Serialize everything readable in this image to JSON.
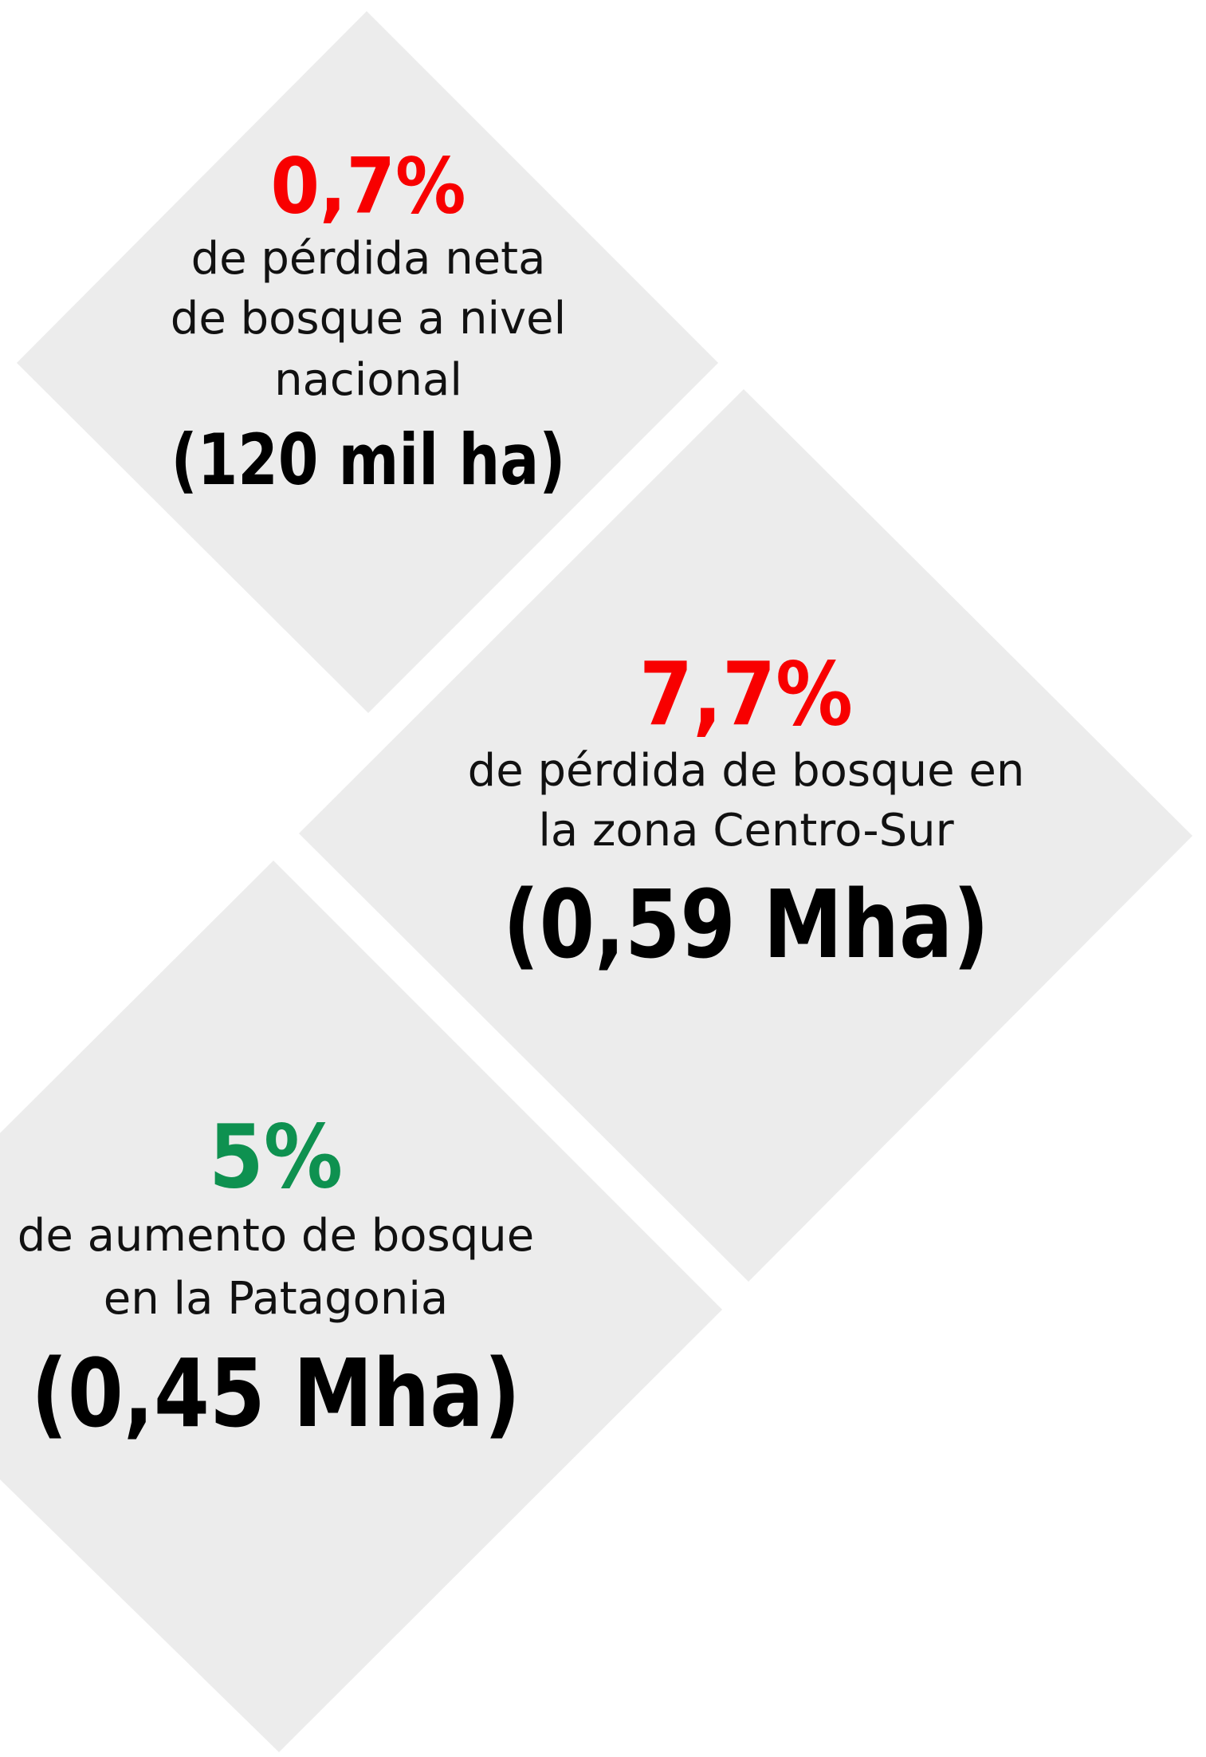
{
  "cards": [
    {
      "value": "0,7%",
      "lines": [
        "de pérdida neta",
        "de bosque a nivel",
        "nacional"
      ],
      "amount": "(120 mil ha)"
    },
    {
      "value": "7,7%",
      "lines": [
        "de pérdida de bosque en",
        "la zona Centro-Sur"
      ],
      "amount": "(0,59 Mha)"
    },
    {
      "value": "5%",
      "lines": [
        "de aumento de bosque",
        "en la Patagonia"
      ],
      "amount": "(0,45 Mha)"
    }
  ]
}
